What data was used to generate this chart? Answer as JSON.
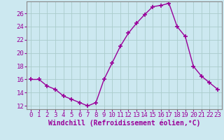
{
  "x": [
    0,
    1,
    2,
    3,
    4,
    5,
    6,
    7,
    8,
    9,
    10,
    11,
    12,
    13,
    14,
    15,
    16,
    17,
    18,
    19,
    20,
    21,
    22,
    23
  ],
  "y": [
    16.0,
    16.0,
    15.0,
    14.5,
    13.5,
    13.0,
    12.5,
    12.0,
    12.5,
    16.0,
    18.5,
    21.0,
    23.0,
    24.5,
    25.8,
    27.0,
    27.2,
    27.5,
    24.0,
    22.5,
    18.0,
    16.5,
    15.5,
    14.5
  ],
  "line_color": "#990099",
  "marker": "+",
  "marker_size": 4,
  "xlabel": "Windchill (Refroidissement éolien,°C)",
  "xlim": [
    -0.5,
    23.5
  ],
  "ylim": [
    11.5,
    27.8
  ],
  "yticks": [
    12,
    14,
    16,
    18,
    20,
    22,
    24,
    26
  ],
  "xticks": [
    0,
    1,
    2,
    3,
    4,
    5,
    6,
    7,
    8,
    9,
    10,
    11,
    12,
    13,
    14,
    15,
    16,
    17,
    18,
    19,
    20,
    21,
    22,
    23
  ],
  "bg_color": "#cce8f0",
  "grid_color": "#aacccc",
  "axis_color": "#888888",
  "label_color": "#990099",
  "tick_color": "#990099",
  "xlabel_fontsize": 7,
  "tick_fontsize": 6.5
}
